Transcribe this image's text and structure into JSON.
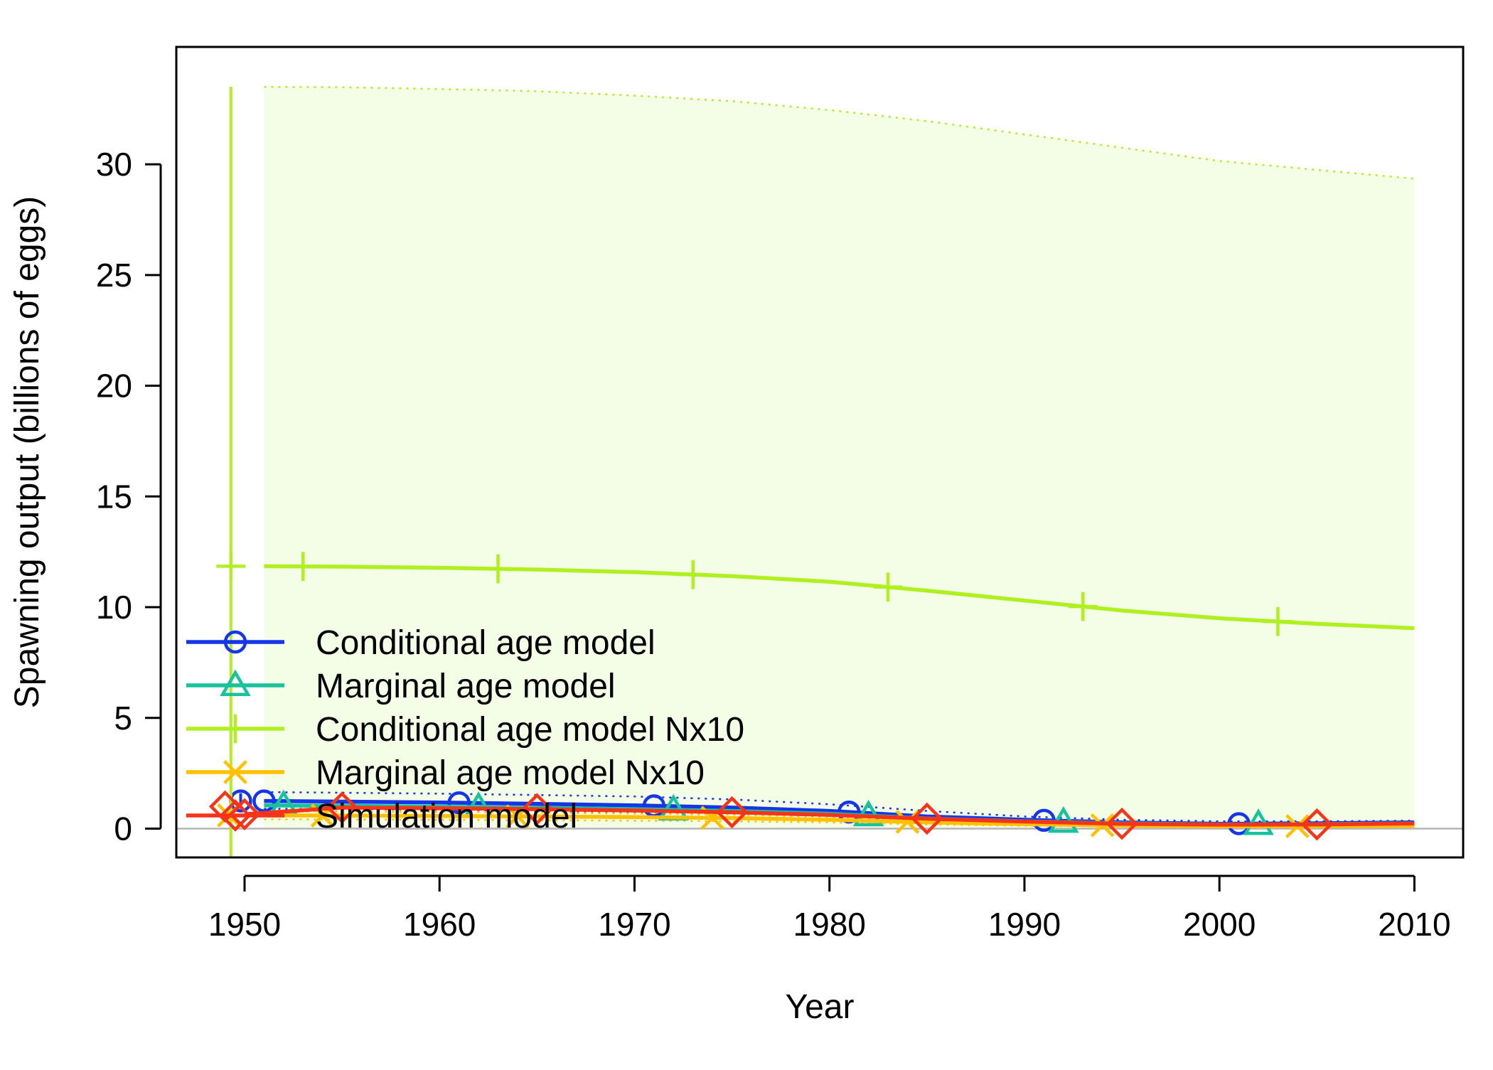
{
  "chart_data": {
    "type": "line",
    "title": "",
    "xlabel": "Year",
    "ylabel": "Spawning output (billions of eggs)",
    "xlim": [
      1946.5,
      2012.5
    ],
    "ylim": [
      -1.3,
      35.3
    ],
    "x_ticks": [
      1950,
      1960,
      1970,
      1980,
      1990,
      2000,
      2010
    ],
    "y_ticks": [
      0,
      5,
      10,
      15,
      20,
      25,
      30
    ],
    "x_tick_labels": [
      "1950",
      "1960",
      "1970",
      "1980",
      "1990",
      "2000",
      "2010"
    ],
    "y_tick_labels": [
      "0",
      "5",
      "10",
      "15",
      "20",
      "25",
      "30"
    ],
    "grid": false,
    "legend_position": "bottom-left",
    "zero_line": true,
    "series": [
      {
        "name": "Conditional age model",
        "color": "#1536e8",
        "marker": "circle",
        "virgin": {
          "x": 1949.8,
          "y": 1.25,
          "lower": 0.9,
          "upper": 1.6
        },
        "x": [
          1951,
          1955,
          1960,
          1965,
          1970,
          1975,
          1980,
          1985,
          1990,
          1995,
          2000,
          2005,
          2010
        ],
        "y": [
          1.25,
          1.22,
          1.18,
          1.12,
          1.05,
          0.95,
          0.8,
          0.55,
          0.4,
          0.28,
          0.22,
          0.24,
          0.28
        ],
        "upper": [
          1.65,
          1.62,
          1.58,
          1.52,
          1.45,
          1.32,
          1.1,
          0.8,
          0.55,
          0.4,
          0.33,
          0.33,
          0.36
        ],
        "lower": [
          0.9,
          0.88,
          0.85,
          0.8,
          0.75,
          0.67,
          0.55,
          0.35,
          0.25,
          0.18,
          0.13,
          0.15,
          0.19
        ],
        "marker_x": [
          1951,
          1961,
          1971,
          1981,
          1991,
          2001
        ]
      },
      {
        "name": "Marginal age model",
        "color": "#17c29c",
        "marker": "triangle",
        "x": [
          1951,
          1955,
          1960,
          1965,
          1970,
          1975,
          1980,
          1985,
          1990,
          1995,
          2000,
          2005,
          2010
        ],
        "y": [
          1.05,
          1.03,
          0.99,
          0.94,
          0.88,
          0.8,
          0.67,
          0.46,
          0.33,
          0.24,
          0.19,
          0.2,
          0.24
        ],
        "marker_x": [
          1952,
          1962,
          1972,
          1982,
          1992,
          2002
        ]
      },
      {
        "name": "Conditional age model Nx10",
        "color": "#b0f020",
        "band_color": "#f4fde6",
        "marker": "plus",
        "virgin": {
          "x": 1949.3,
          "y": 11.85,
          "lower": -1.3,
          "upper": 33.5
        },
        "x": [
          1951,
          1955,
          1960,
          1965,
          1970,
          1975,
          1980,
          1985,
          1990,
          1995,
          2000,
          2005,
          2010
        ],
        "y": [
          11.85,
          11.83,
          11.78,
          11.7,
          11.58,
          11.4,
          11.15,
          10.75,
          10.3,
          9.85,
          9.5,
          9.25,
          9.05
        ],
        "upper": [
          33.5,
          33.48,
          33.4,
          33.3,
          33.1,
          32.85,
          32.45,
          31.95,
          31.35,
          30.75,
          30.15,
          29.75,
          29.35
        ],
        "lower": [
          0.05,
          0.05,
          0.05,
          0.05,
          0.05,
          0.05,
          0.05,
          0.05,
          0.05,
          0.05,
          0.05,
          0.05,
          0.05
        ],
        "marker_x": [
          1953,
          1963,
          1973,
          1983,
          1993,
          2003
        ]
      },
      {
        "name": "Marginal age model Nx10",
        "color": "#ffc000",
        "marker": "cross",
        "virgin": {
          "x": 1949.2,
          "y": 0.6,
          "lower": 0.4,
          "upper": 0.8
        },
        "x": [
          1951,
          1955,
          1960,
          1965,
          1970,
          1975,
          1980,
          1985,
          1990,
          1995,
          2000,
          2005,
          2010
        ],
        "y": [
          0.6,
          0.59,
          0.57,
          0.55,
          0.52,
          0.48,
          0.4,
          0.28,
          0.2,
          0.14,
          0.11,
          0.11,
          0.13
        ],
        "upper": [
          0.78,
          0.77,
          0.75,
          0.72,
          0.68,
          0.63,
          0.53,
          0.38,
          0.28,
          0.2,
          0.16,
          0.16,
          0.18
        ],
        "lower": [
          0.42,
          0.41,
          0.4,
          0.38,
          0.36,
          0.33,
          0.28,
          0.19,
          0.13,
          0.09,
          0.07,
          0.07,
          0.08
        ],
        "marker_x": [
          1954,
          1964,
          1974,
          1984,
          1994,
          2004
        ]
      },
      {
        "name": "Simulation model",
        "color": "#f5341a",
        "marker": "diamond",
        "virgin": {
          "x": 1949,
          "y": 1.0
        },
        "x": [
          1950,
          1955,
          1960,
          1965,
          1970,
          1975,
          1980,
          1985,
          1990,
          1995,
          2000,
          2005,
          2010
        ],
        "y": [
          0.65,
          0.95,
          0.92,
          0.88,
          0.82,
          0.74,
          0.62,
          0.45,
          0.32,
          0.22,
          0.18,
          0.19,
          0.23
        ],
        "marker_x": [
          1950,
          1955,
          1965,
          1975,
          1985,
          1995,
          2005
        ]
      }
    ]
  }
}
